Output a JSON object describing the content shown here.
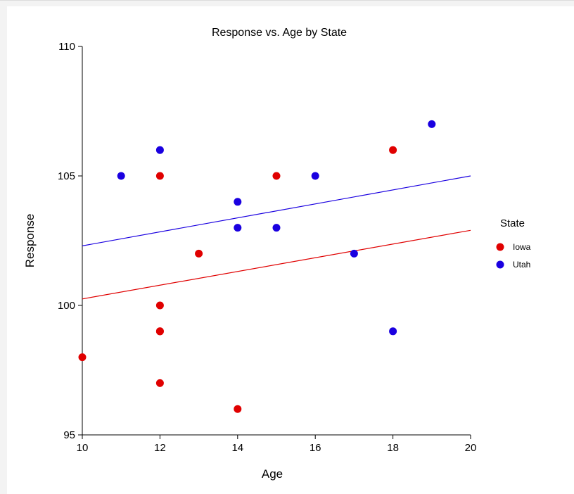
{
  "chart_data": {
    "type": "scatter",
    "title": "Response vs. Age by State",
    "xlabel": "Age",
    "ylabel": "Response",
    "xlim": [
      10,
      20
    ],
    "ylim": [
      95,
      110
    ],
    "xticks": [
      10,
      12,
      14,
      16,
      18,
      20
    ],
    "yticks": [
      95,
      100,
      105,
      110
    ],
    "grid": false,
    "legend": {
      "title": "State",
      "placement": "right"
    },
    "series": [
      {
        "name": "Iowa",
        "color": "#e00000",
        "points": [
          {
            "x": 10,
            "y": 98
          },
          {
            "x": 12,
            "y": 105
          },
          {
            "x": 12,
            "y": 100
          },
          {
            "x": 12,
            "y": 99
          },
          {
            "x": 12,
            "y": 99
          },
          {
            "x": 12,
            "y": 97
          },
          {
            "x": 13,
            "y": 102
          },
          {
            "x": 14,
            "y": 96
          },
          {
            "x": 15,
            "y": 105
          },
          {
            "x": 18,
            "y": 106
          }
        ],
        "fit_line": {
          "x": [
            10,
            20
          ],
          "y": [
            100.25,
            102.9
          ]
        }
      },
      {
        "name": "Utah",
        "color": "#1a00e0",
        "points": [
          {
            "x": 11,
            "y": 105
          },
          {
            "x": 12,
            "y": 106
          },
          {
            "x": 14,
            "y": 104
          },
          {
            "x": 14,
            "y": 103
          },
          {
            "x": 15,
            "y": 103
          },
          {
            "x": 16,
            "y": 105
          },
          {
            "x": 17,
            "y": 102
          },
          {
            "x": 18,
            "y": 99
          },
          {
            "x": 19,
            "y": 107
          }
        ],
        "fit_line": {
          "x": [
            10,
            20
          ],
          "y": [
            102.3,
            105.0
          ]
        }
      }
    ]
  }
}
